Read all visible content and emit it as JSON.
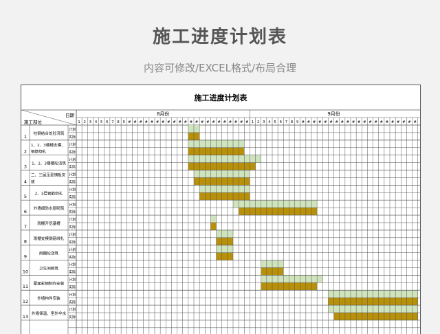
{
  "page": {
    "title": "施工进度计划表",
    "subtitle": "内容可修改/EXCEL格式/布局合理"
  },
  "sheet": {
    "title": "施工进度计划表",
    "corner_date": "日期",
    "corner_part": "施工部位",
    "plan_label": "计划",
    "actual_label": "实际",
    "months": [
      {
        "label": "8月份",
        "days": [
          "1",
          "2",
          "3",
          "4",
          "5",
          "6",
          "7",
          "8",
          "9",
          "#",
          "#",
          "#",
          "#",
          "#",
          "#",
          "#",
          "#",
          "#",
          "#",
          "#",
          "#",
          "#",
          "#",
          "#",
          "#",
          "#",
          "#",
          "#",
          "#",
          "#",
          "#"
        ]
      },
      {
        "label": "9月份",
        "days": [
          "1",
          "2",
          "3",
          "4",
          "5",
          "6",
          "7",
          "8",
          "9",
          "#",
          "#",
          "#",
          "#",
          "#",
          "#",
          "#",
          "#",
          "#",
          "#",
          "#",
          "#",
          "#",
          "#",
          "#",
          "#",
          "#",
          "#",
          "#",
          "#",
          "#"
        ]
      }
    ],
    "tasks": [
      {
        "no": "1",
        "name": [
          "柱钢结合处砼浇筑"
        ],
        "plan": [
          21,
          22
        ],
        "actual": [
          21,
          22
        ]
      },
      {
        "no": "2",
        "name": [
          "1、2、3楼楼支模、",
          "钢筋绑扎"
        ],
        "plan": [
          21,
          30
        ],
        "actual": [
          21,
          30
        ]
      },
      {
        "no": "3",
        "name": [
          "1、2、3楼楼砼浇筑"
        ],
        "plan": [
          21,
          33
        ],
        "actual": [
          21,
          32
        ]
      },
      {
        "no": "4",
        "name": [
          "二、三层压型钢板安",
          "装"
        ],
        "plan": [
          22,
          31
        ],
        "actual": [
          22,
          31
        ]
      },
      {
        "no": "5",
        "name": [
          "2、3层钢筋绑扎"
        ],
        "plan": [
          23,
          31
        ],
        "actual": [
          23,
          31
        ]
      },
      {
        "no": "6",
        "name": [
          "外墙细防水层砌筑"
        ],
        "plan": [
          29,
          43
        ],
        "actual": [
          30,
          43
        ]
      },
      {
        "no": "7",
        "name": [
          "雨棚开挖基槽"
        ],
        "plan": [
          25,
          25
        ],
        "actual": [
          25,
          25
        ]
      },
      {
        "no": "8",
        "name": [
          "雨棚支模钢筋绑扎"
        ],
        "plan": [
          26,
          28
        ],
        "actual": [
          26,
          28
        ]
      },
      {
        "no": "9",
        "name": [
          "雨棚砼浇筑"
        ],
        "plan": [
          26,
          28
        ],
        "actual": [
          26,
          28
        ]
      },
      {
        "no": "10",
        "name": [
          "卫生间砌筑"
        ],
        "plan": [
          34,
          37
        ],
        "actual": [
          34,
          37
        ]
      },
      {
        "no": "11",
        "name": [
          "屋面彩钢制作安装"
        ],
        "plan": [
          34,
          44
        ],
        "actual": [
          34,
          43
        ]
      },
      {
        "no": "12",
        "name": [
          "外墙构件安装"
        ],
        "plan": [
          46,
          61
        ],
        "actual": [
          46,
          61
        ]
      },
      {
        "no": "13",
        "name": [
          "外墙保温、室外伞水"
        ],
        "plan": [
          46,
          61
        ],
        "actual": [
          47,
          61
        ]
      }
    ],
    "colors": {
      "plan": "#cfe3bd",
      "actual": "#b8900a",
      "grid": "#555555"
    }
  }
}
